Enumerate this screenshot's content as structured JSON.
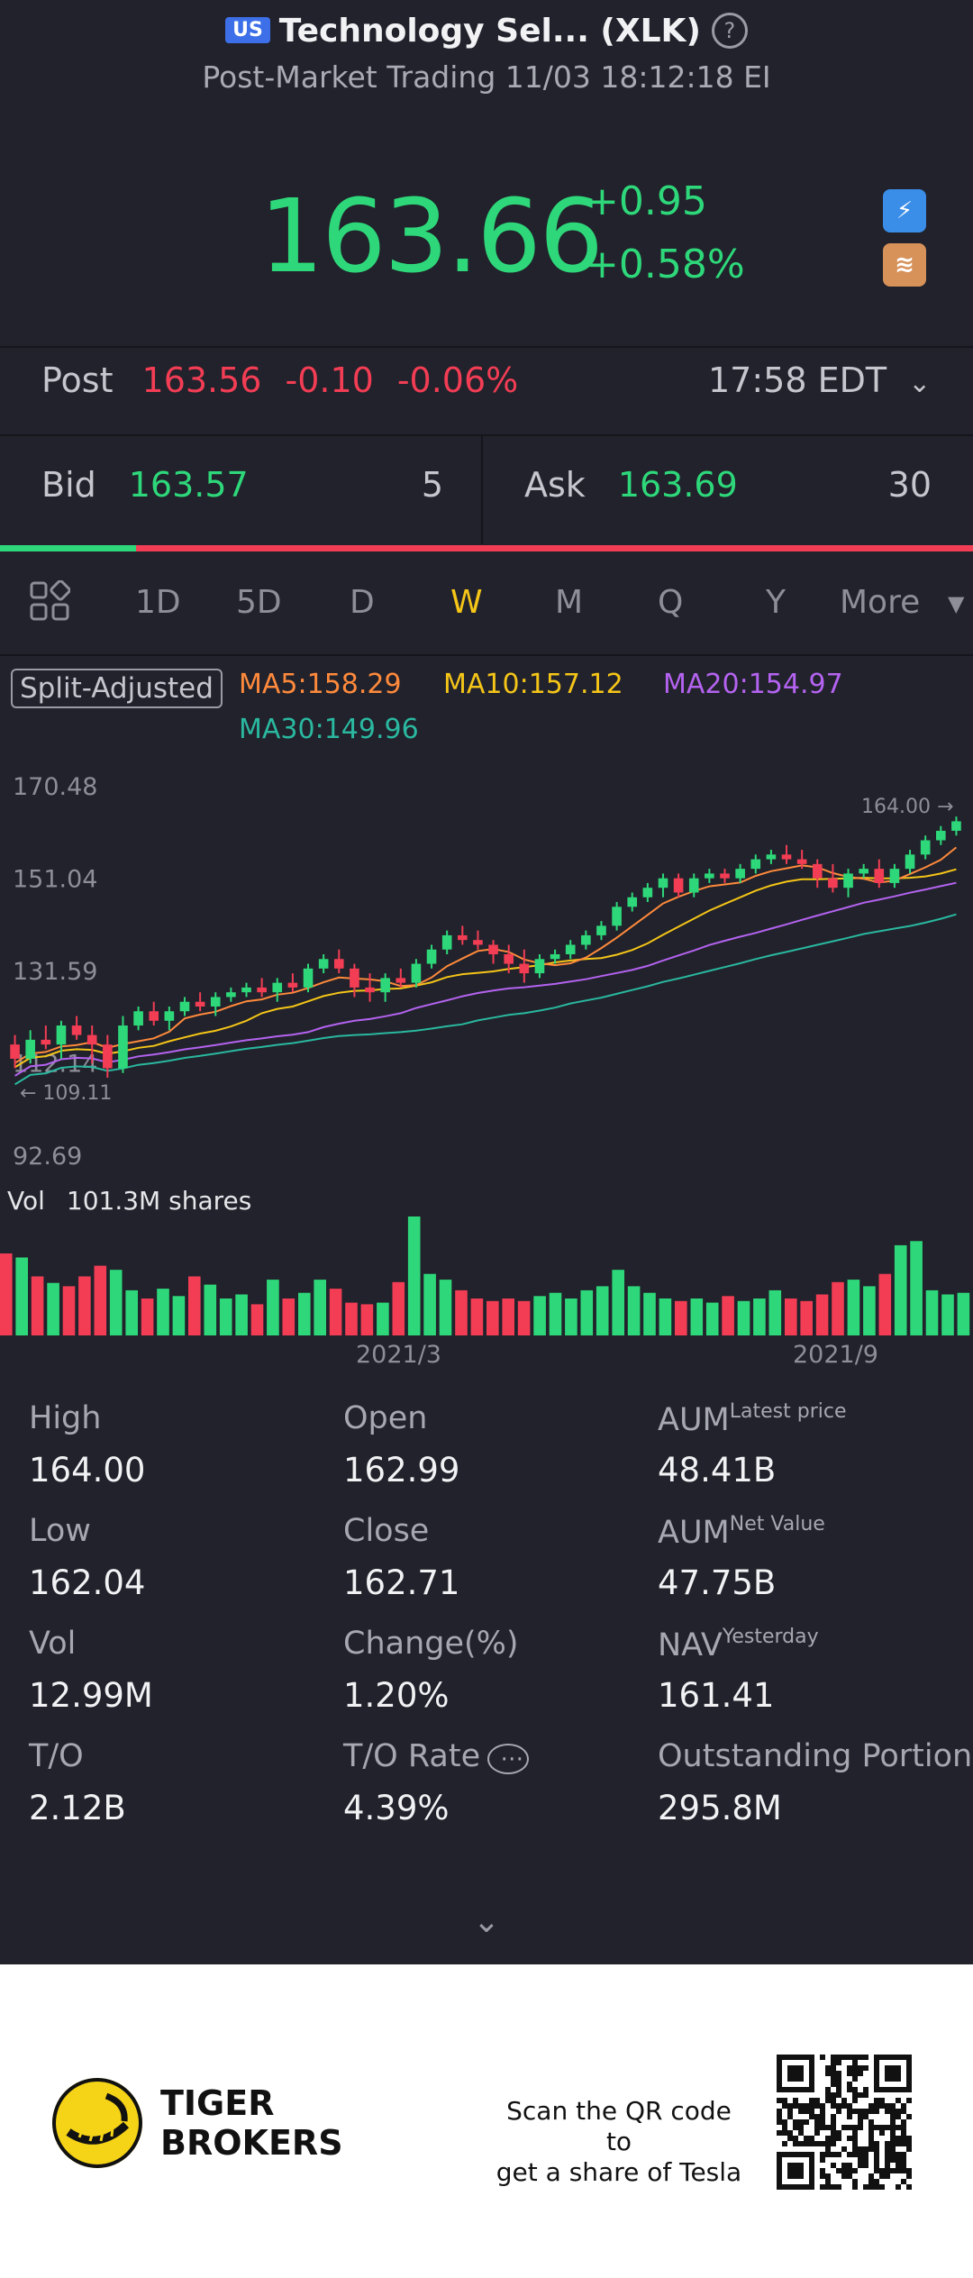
{
  "header": {
    "market_badge": "US",
    "title": "Technology Sel... (XLK)",
    "subtitle": "Post-Market Trading 11/03 18:12:18 EI"
  },
  "quote": {
    "price": "163.66",
    "change": "+0.95",
    "change_pct": "+0.58%",
    "icons": [
      "lightning-icon",
      "layers-icon"
    ]
  },
  "post": {
    "label": "Post",
    "price": "163.56",
    "change": "-0.10",
    "change_pct": "-0.06%",
    "time": "17:58 EDT"
  },
  "book": {
    "bid_label": "Bid",
    "bid_price": "163.57",
    "bid_size": "5",
    "ask_label": "Ask",
    "ask_price": "163.69",
    "ask_size": "30",
    "bid_ratio": 0.14
  },
  "tabs": {
    "items": [
      "1D",
      "5D",
      "D",
      "W",
      "M",
      "Q",
      "Y",
      "More"
    ],
    "active": "W"
  },
  "indicators": {
    "adjust_label": "Split-Adjusted",
    "ma5": "MA5:158.29",
    "ma10": "MA10:157.12",
    "ma20": "MA20:154.97",
    "ma30": "MA30:149.96"
  },
  "colors": {
    "up": "#2ed87a",
    "down": "#f23d54",
    "ma5": "#ff8a3c",
    "ma10": "#f5c518",
    "ma20": "#b463f0",
    "ma30": "#2ab8a0",
    "background": "#21222b"
  },
  "chart_data": {
    "type": "candlestick",
    "y_ticks": [
      "170.48",
      "151.04",
      "131.59",
      "112.14",
      "92.69"
    ],
    "ylim": [
      92.69,
      170.48
    ],
    "high_marker": "164.00",
    "low_marker": "109.11",
    "volume_label": "Vol",
    "volume_value": "101.3M shares",
    "x_ticks": [
      "2021/3",
      "2021/9"
    ],
    "candles": [
      {
        "o": 116,
        "h": 118,
        "l": 111,
        "c": 113
      },
      {
        "o": 113,
        "h": 119,
        "l": 112,
        "c": 117
      },
      {
        "o": 117,
        "h": 120,
        "l": 115,
        "c": 116
      },
      {
        "o": 116,
        "h": 121,
        "l": 113,
        "c": 120
      },
      {
        "o": 120,
        "h": 122,
        "l": 117,
        "c": 118
      },
      {
        "o": 118,
        "h": 120,
        "l": 112,
        "c": 116
      },
      {
        "o": 116,
        "h": 118,
        "l": 109,
        "c": 111
      },
      {
        "o": 111,
        "h": 122,
        "l": 110,
        "c": 120
      },
      {
        "o": 120,
        "h": 124,
        "l": 119,
        "c": 123
      },
      {
        "o": 123,
        "h": 125,
        "l": 120,
        "c": 121
      },
      {
        "o": 121,
        "h": 124,
        "l": 119,
        "c": 123
      },
      {
        "o": 123,
        "h": 126,
        "l": 122,
        "c": 125
      },
      {
        "o": 125,
        "h": 127,
        "l": 123,
        "c": 124
      },
      {
        "o": 124,
        "h": 127,
        "l": 122,
        "c": 126
      },
      {
        "o": 126,
        "h": 128,
        "l": 125,
        "c": 127
      },
      {
        "o": 127,
        "h": 129,
        "l": 126,
        "c": 128
      },
      {
        "o": 128,
        "h": 130,
        "l": 126,
        "c": 127
      },
      {
        "o": 127,
        "h": 130,
        "l": 125,
        "c": 129
      },
      {
        "o": 129,
        "h": 131,
        "l": 127,
        "c": 128
      },
      {
        "o": 128,
        "h": 133,
        "l": 127,
        "c": 132
      },
      {
        "o": 132,
        "h": 135,
        "l": 131,
        "c": 134
      },
      {
        "o": 134,
        "h": 136,
        "l": 131,
        "c": 132
      },
      {
        "o": 132,
        "h": 133,
        "l": 126,
        "c": 128
      },
      {
        "o": 128,
        "h": 131,
        "l": 125,
        "c": 127
      },
      {
        "o": 127,
        "h": 131,
        "l": 125,
        "c": 130
      },
      {
        "o": 130,
        "h": 132,
        "l": 128,
        "c": 129
      },
      {
        "o": 129,
        "h": 134,
        "l": 128,
        "c": 133
      },
      {
        "o": 133,
        "h": 137,
        "l": 132,
        "c": 136
      },
      {
        "o": 136,
        "h": 140,
        "l": 135,
        "c": 139
      },
      {
        "o": 139,
        "h": 141,
        "l": 137,
        "c": 138
      },
      {
        "o": 138,
        "h": 140,
        "l": 136,
        "c": 137
      },
      {
        "o": 137,
        "h": 138,
        "l": 133,
        "c": 135
      },
      {
        "o": 135,
        "h": 137,
        "l": 131,
        "c": 133
      },
      {
        "o": 133,
        "h": 136,
        "l": 129,
        "c": 131
      },
      {
        "o": 131,
        "h": 135,
        "l": 130,
        "c": 134
      },
      {
        "o": 134,
        "h": 136,
        "l": 133,
        "c": 135
      },
      {
        "o": 135,
        "h": 138,
        "l": 134,
        "c": 137
      },
      {
        "o": 137,
        "h": 140,
        "l": 136,
        "c": 139
      },
      {
        "o": 139,
        "h": 142,
        "l": 138,
        "c": 141
      },
      {
        "o": 141,
        "h": 146,
        "l": 140,
        "c": 145
      },
      {
        "o": 145,
        "h": 148,
        "l": 144,
        "c": 147
      },
      {
        "o": 147,
        "h": 150,
        "l": 146,
        "c": 149
      },
      {
        "o": 149,
        "h": 152,
        "l": 147,
        "c": 151
      },
      {
        "o": 151,
        "h": 152,
        "l": 147,
        "c": 148
      },
      {
        "o": 148,
        "h": 152,
        "l": 147,
        "c": 151
      },
      {
        "o": 151,
        "h": 153,
        "l": 150,
        "c": 152
      },
      {
        "o": 152,
        "h": 153,
        "l": 150,
        "c": 151
      },
      {
        "o": 151,
        "h": 154,
        "l": 150,
        "c": 153
      },
      {
        "o": 153,
        "h": 156,
        "l": 152,
        "c": 155
      },
      {
        "o": 155,
        "h": 157,
        "l": 154,
        "c": 156
      },
      {
        "o": 156,
        "h": 158,
        "l": 154,
        "c": 155
      },
      {
        "o": 155,
        "h": 157,
        "l": 153,
        "c": 154
      },
      {
        "o": 154,
        "h": 155,
        "l": 149,
        "c": 151
      },
      {
        "o": 151,
        "h": 154,
        "l": 148,
        "c": 149
      },
      {
        "o": 149,
        "h": 153,
        "l": 147,
        "c": 152
      },
      {
        "o": 152,
        "h": 154,
        "l": 151,
        "c": 153
      },
      {
        "o": 153,
        "h": 155,
        "l": 149,
        "c": 150
      },
      {
        "o": 150,
        "h": 154,
        "l": 149,
        "c": 153
      },
      {
        "o": 153,
        "h": 157,
        "l": 152,
        "c": 156
      },
      {
        "o": 156,
        "h": 160,
        "l": 155,
        "c": 159
      },
      {
        "o": 159,
        "h": 162,
        "l": 158,
        "c": 161
      },
      {
        "o": 161,
        "h": 164,
        "l": 160,
        "c": 163
      }
    ],
    "volumes": [
      1.0,
      0.95,
      0.72,
      0.64,
      0.6,
      0.72,
      0.85,
      0.8,
      0.55,
      0.45,
      0.57,
      0.48,
      0.72,
      0.62,
      0.45,
      0.5,
      0.38,
      0.68,
      0.45,
      0.52,
      0.68,
      0.57,
      0.4,
      0.38,
      0.4,
      0.65,
      1.45,
      0.75,
      0.68,
      0.55,
      0.45,
      0.42,
      0.45,
      0.42,
      0.48,
      0.52,
      0.45,
      0.55,
      0.6,
      0.8,
      0.6,
      0.52,
      0.45,
      0.42,
      0.45,
      0.4,
      0.48,
      0.42,
      0.45,
      0.55,
      0.45,
      0.42,
      0.5,
      0.65,
      0.68,
      0.6,
      0.75,
      1.1,
      1.15,
      0.55,
      0.5,
      0.52
    ]
  },
  "stats": [
    {
      "label": "High",
      "sup": "",
      "value": "164.00"
    },
    {
      "label": "Open",
      "sup": "",
      "value": "162.99"
    },
    {
      "label": "AUM",
      "sup": "Latest price",
      "value": "48.41B"
    },
    {
      "label": "Low",
      "sup": "",
      "value": "162.04"
    },
    {
      "label": "Close",
      "sup": "",
      "value": "162.71"
    },
    {
      "label": "AUM",
      "sup": "Net Value",
      "value": "47.75B"
    },
    {
      "label": "Vol",
      "sup": "",
      "value": "12.99M"
    },
    {
      "label": "Change(%)",
      "sup": "",
      "value": "1.20%"
    },
    {
      "label": "NAV",
      "sup": "Yesterday",
      "value": "161.41"
    },
    {
      "label": "T/O",
      "sup": "",
      "value": "2.12B"
    },
    {
      "label": "T/O Rate",
      "sup": "",
      "value": "4.39%"
    },
    {
      "label": "Outstanding Portion",
      "sup": "",
      "value": "295.8M"
    }
  ],
  "footer": {
    "brand_line1": "TIGER",
    "brand_line2": "BROKERS",
    "scan_line1": "Scan the QR code to",
    "scan_line2": "get a share of Tesla"
  }
}
